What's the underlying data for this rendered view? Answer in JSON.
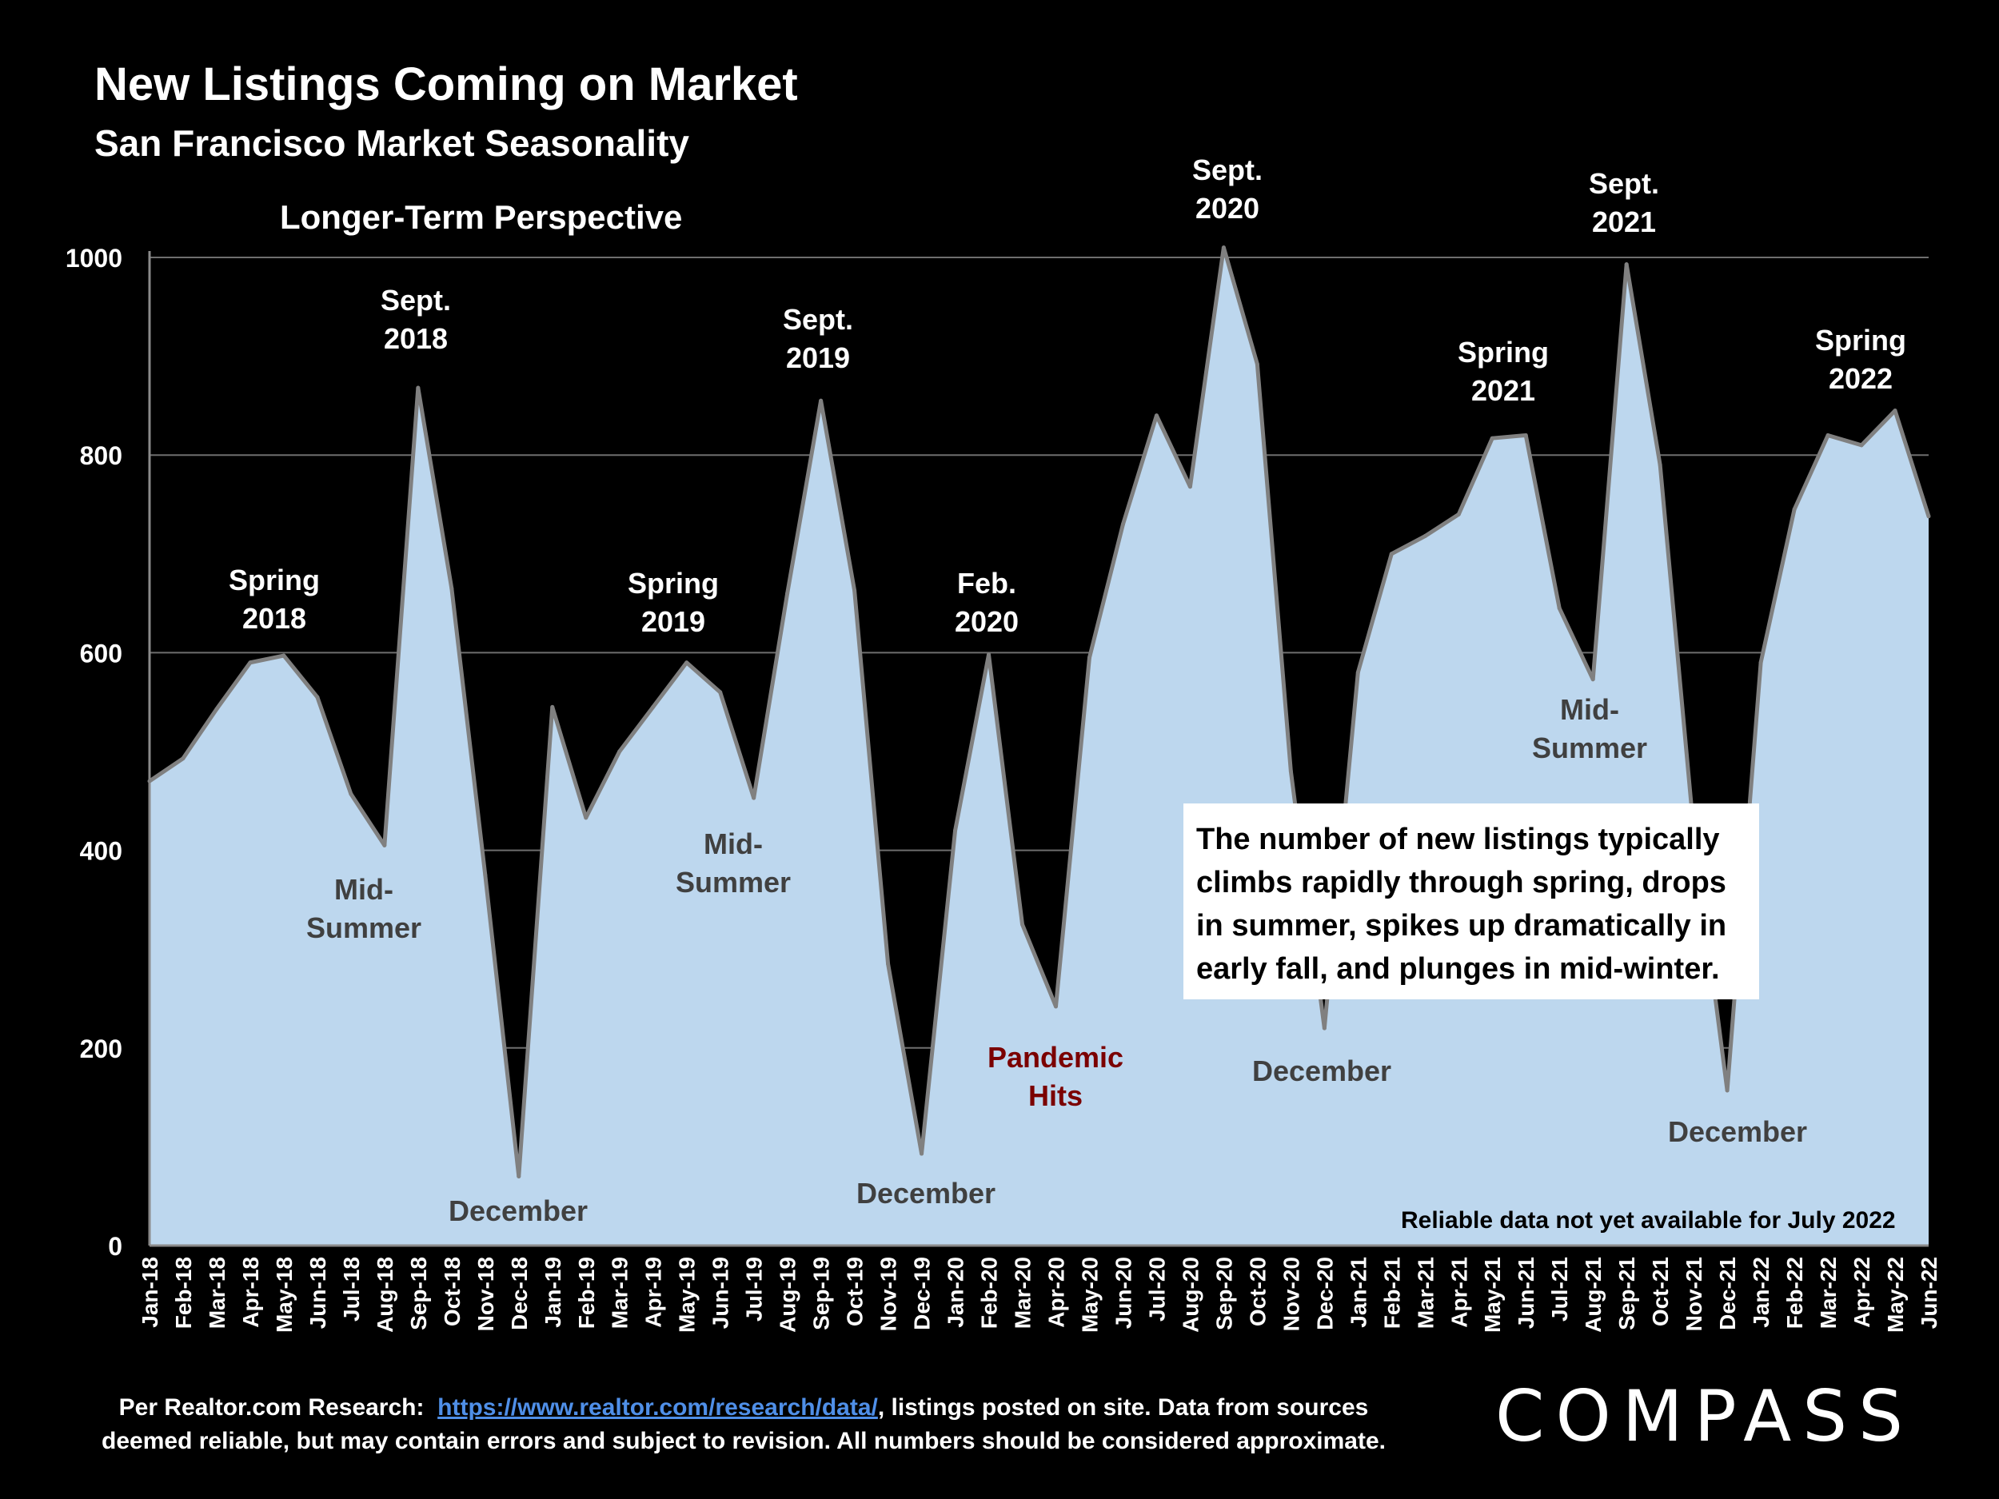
{
  "header": {
    "title": "New Listings Coming on Market",
    "subtitle": "San Francisco Market Seasonality",
    "chart_subtitle": "Longer-Term Perspective"
  },
  "callout": "The number of new listings typically climbs rapidly through spring, drops in summer, spikes up dramatically in early fall, and plunges in mid-winter.",
  "note": "Reliable data not yet available for July 2022",
  "footer": {
    "line1_prefix": "Per Realtor.com Research:",
    "link": "https://www.realtor.com/research/data/",
    "line1_suffix": ", listings posted on site. Data from sources",
    "line2": "deemed reliable, but may contain errors and subject to revision. All numbers should be considered approximate."
  },
  "logo": "COMPASS",
  "colors": {
    "area": "#bdd7ee",
    "line": "#808080",
    "pandemic": "#7b0000",
    "muted": "#404040"
  },
  "chart_data": {
    "type": "area",
    "title": "New Listings Coming on Market",
    "xlabel": "",
    "ylabel": "",
    "ylim": [
      0,
      1000
    ],
    "yticks": [
      "0",
      "200",
      "400",
      "600",
      "800",
      "1000"
    ],
    "categories": [
      "Jan-18",
      "Feb-18",
      "Mar-18",
      "Apr-18",
      "May-18",
      "Jun-18",
      "Jul-18",
      "Aug-18",
      "Sep-18",
      "Oct-18",
      "Nov-18",
      "Dec-18",
      "Jan-19",
      "Feb-19",
      "Mar-19",
      "Apr-19",
      "May-19",
      "Jun-19",
      "Jul-19",
      "Aug-19",
      "Sep-19",
      "Oct-19",
      "Nov-19",
      "Dec-19",
      "Jan-20",
      "Feb-20",
      "Mar-20",
      "Apr-20",
      "May-20",
      "Jun-20",
      "Jul-20",
      "Aug-20",
      "Sep-20",
      "Oct-20",
      "Nov-20",
      "Dec-20",
      "Jan-21",
      "Feb-21",
      "Mar-21",
      "Apr-21",
      "May-21",
      "Jun-21",
      "Jul-21",
      "Aug-21",
      "Sep-21",
      "Oct-21",
      "Nov-21",
      "Dec-21",
      "Jan-22",
      "Feb-22",
      "Mar-22",
      "Apr-22",
      "May-22",
      "Jun-22"
    ],
    "values": [
      470,
      493,
      543,
      590,
      597,
      555,
      457,
      405,
      868,
      665,
      375,
      70,
      545,
      433,
      500,
      545,
      590,
      560,
      453,
      660,
      855,
      663,
      285,
      93,
      420,
      598,
      325,
      242,
      595,
      730,
      840,
      768,
      1010,
      892,
      480,
      220,
      580,
      700,
      718,
      740,
      817,
      820,
      645,
      573,
      993,
      790,
      420,
      157,
      590,
      745,
      820,
      810,
      845,
      738
    ],
    "annotations": [
      {
        "label": [
          "Spring",
          "2018"
        ],
        "style": "white"
      },
      {
        "label": [
          "Sept.",
          "2018"
        ],
        "style": "white"
      },
      {
        "label": [
          "Mid-",
          "Summer"
        ],
        "style": "dark"
      },
      {
        "label": [
          "December"
        ],
        "style": "dark"
      },
      {
        "label": [
          "Spring",
          "2019"
        ],
        "style": "white"
      },
      {
        "label": [
          "Sept.",
          "2019"
        ],
        "style": "white"
      },
      {
        "label": [
          "Mid-",
          "Summer"
        ],
        "style": "dark"
      },
      {
        "label": [
          "December"
        ],
        "style": "dark"
      },
      {
        "label": [
          "Feb.",
          "2020"
        ],
        "style": "white"
      },
      {
        "label": [
          "Pandemic",
          "Hits"
        ],
        "style": "pandemic"
      },
      {
        "label": [
          "Sept.",
          "2020"
        ],
        "style": "white"
      },
      {
        "label": [
          "December"
        ],
        "style": "dark"
      },
      {
        "label": [
          "Spring",
          "2021"
        ],
        "style": "white"
      },
      {
        "label": [
          "Mid-",
          "Summer"
        ],
        "style": "dark"
      },
      {
        "label": [
          "Sept.",
          "2021"
        ],
        "style": "white"
      },
      {
        "label": [
          "December"
        ],
        "style": "dark"
      },
      {
        "label": [
          "Spring",
          "2022"
        ],
        "style": "white"
      }
    ]
  }
}
